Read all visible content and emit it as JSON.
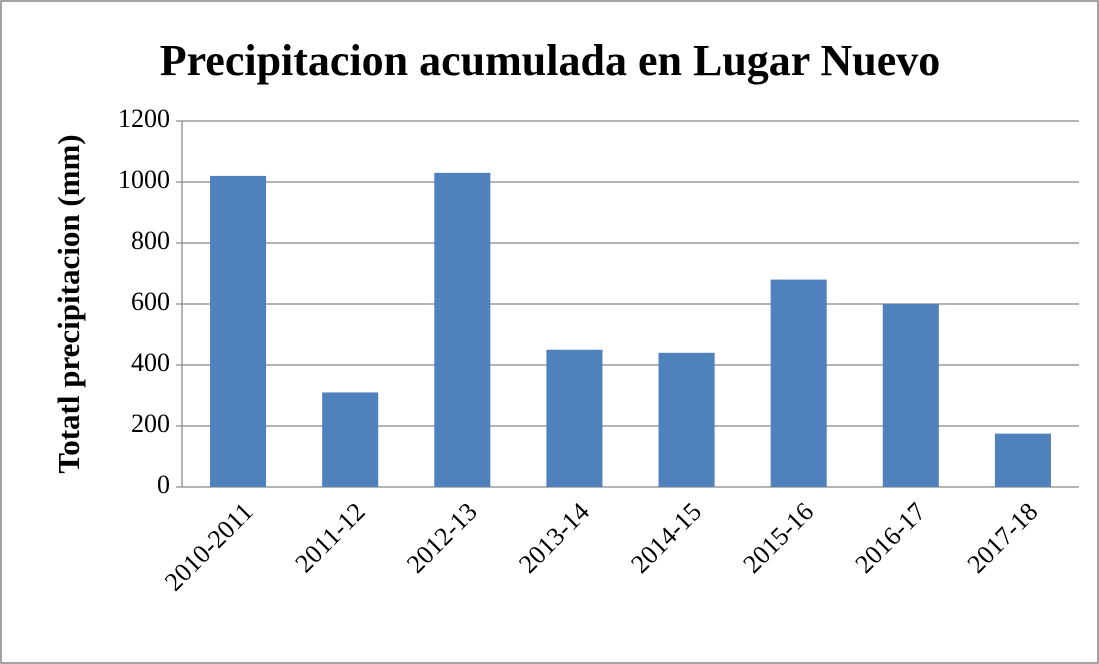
{
  "chart_data": {
    "type": "bar",
    "title": "Precipitacion acumulada en Lugar Nuevo",
    "y_label": "Totatl precipitacion (mm)",
    "categories": [
      "2010-2011",
      "2011-12",
      "2012-13",
      "2013-14",
      "2014-15",
      "2015-16",
      "2016-17",
      "2017-18"
    ],
    "values": [
      1020,
      310,
      1030,
      450,
      440,
      680,
      600,
      175
    ],
    "color": "#4f81bd",
    "ylim": [
      0,
      1200
    ],
    "yticks": [
      0,
      200,
      400,
      600,
      800,
      1000,
      1200
    ],
    "grid": true
  }
}
